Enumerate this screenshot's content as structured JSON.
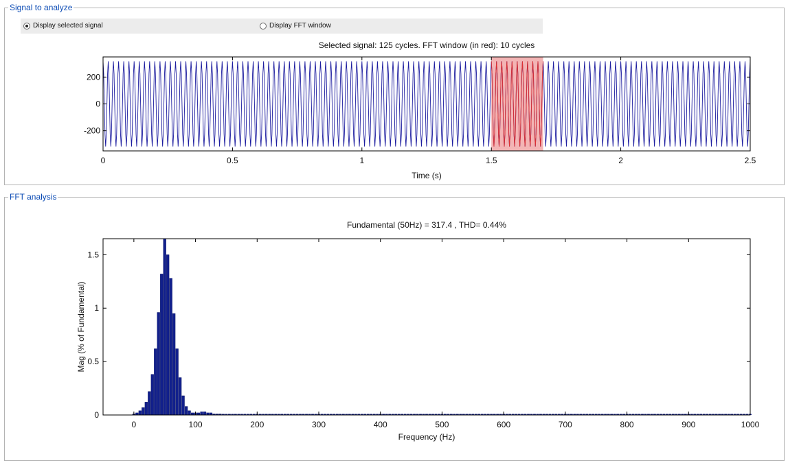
{
  "signal_panel": {
    "legend": "Signal to analyze",
    "radio_selected_label": "Display selected signal",
    "radio_fft_label": "Display FFT window",
    "plot_title": "Selected signal: 125 cycles. FFT window (in red): 10 cycles"
  },
  "fft_panel": {
    "legend": "FFT analysis",
    "plot_title": "Fundamental (50Hz) = 317.4 , THD= 0.44%"
  },
  "colors": {
    "signal_blue": "#1e1ea0",
    "window_red": "#e03030",
    "window_fill": "#f3b4b4",
    "bar_blue": "#12208c",
    "legend_blue": "#0a4ab4"
  },
  "chart_data": [
    {
      "type": "line",
      "title": "Selected signal: 125 cycles. FFT window (in red): 10 cycles",
      "xlabel": "Time (s)",
      "ylabel": "",
      "xlim": [
        0,
        2.5
      ],
      "ylim": [
        -350,
        350
      ],
      "x_ticks": [
        "0",
        "0.5",
        "1",
        "1.5",
        "2",
        "2.5"
      ],
      "y_ticks": [
        "200",
        "0",
        "-200"
      ],
      "cycles": 125,
      "frequency_hz": 50,
      "amplitude": 317.4,
      "fft_window": [
        1.5,
        1.7
      ],
      "grid": false
    },
    {
      "type": "bar",
      "title": "Fundamental (50Hz) = 317.4 , THD= 0.44%",
      "xlabel": "Frequency (Hz)",
      "ylabel": "Mag (% of Fundamental)",
      "xlim": [
        -50,
        1000
      ],
      "ylim": [
        0,
        1.65
      ],
      "x_ticks": [
        "0",
        "100",
        "200",
        "300",
        "400",
        "500",
        "600",
        "700",
        "800",
        "900",
        "1000"
      ],
      "y_ticks": [
        "1.5",
        "1",
        "0.5",
        "0"
      ],
      "bar_width_hz": 5,
      "x": [
        0,
        5,
        10,
        15,
        20,
        25,
        30,
        35,
        40,
        45,
        50,
        55,
        60,
        65,
        70,
        75,
        80,
        85,
        90,
        95,
        100,
        105,
        110,
        115,
        120,
        125,
        130,
        135,
        140
      ],
      "values": [
        0.01,
        0.02,
        0.04,
        0.07,
        0.12,
        0.22,
        0.38,
        0.62,
        0.96,
        1.32,
        1.65,
        1.5,
        1.28,
        0.95,
        0.62,
        0.35,
        0.18,
        0.08,
        0.04,
        0.02,
        0.02,
        0.02,
        0.03,
        0.03,
        0.02,
        0.02,
        0.01,
        0.01,
        0.01
      ],
      "floor_value": 0.01,
      "grid": false
    }
  ]
}
